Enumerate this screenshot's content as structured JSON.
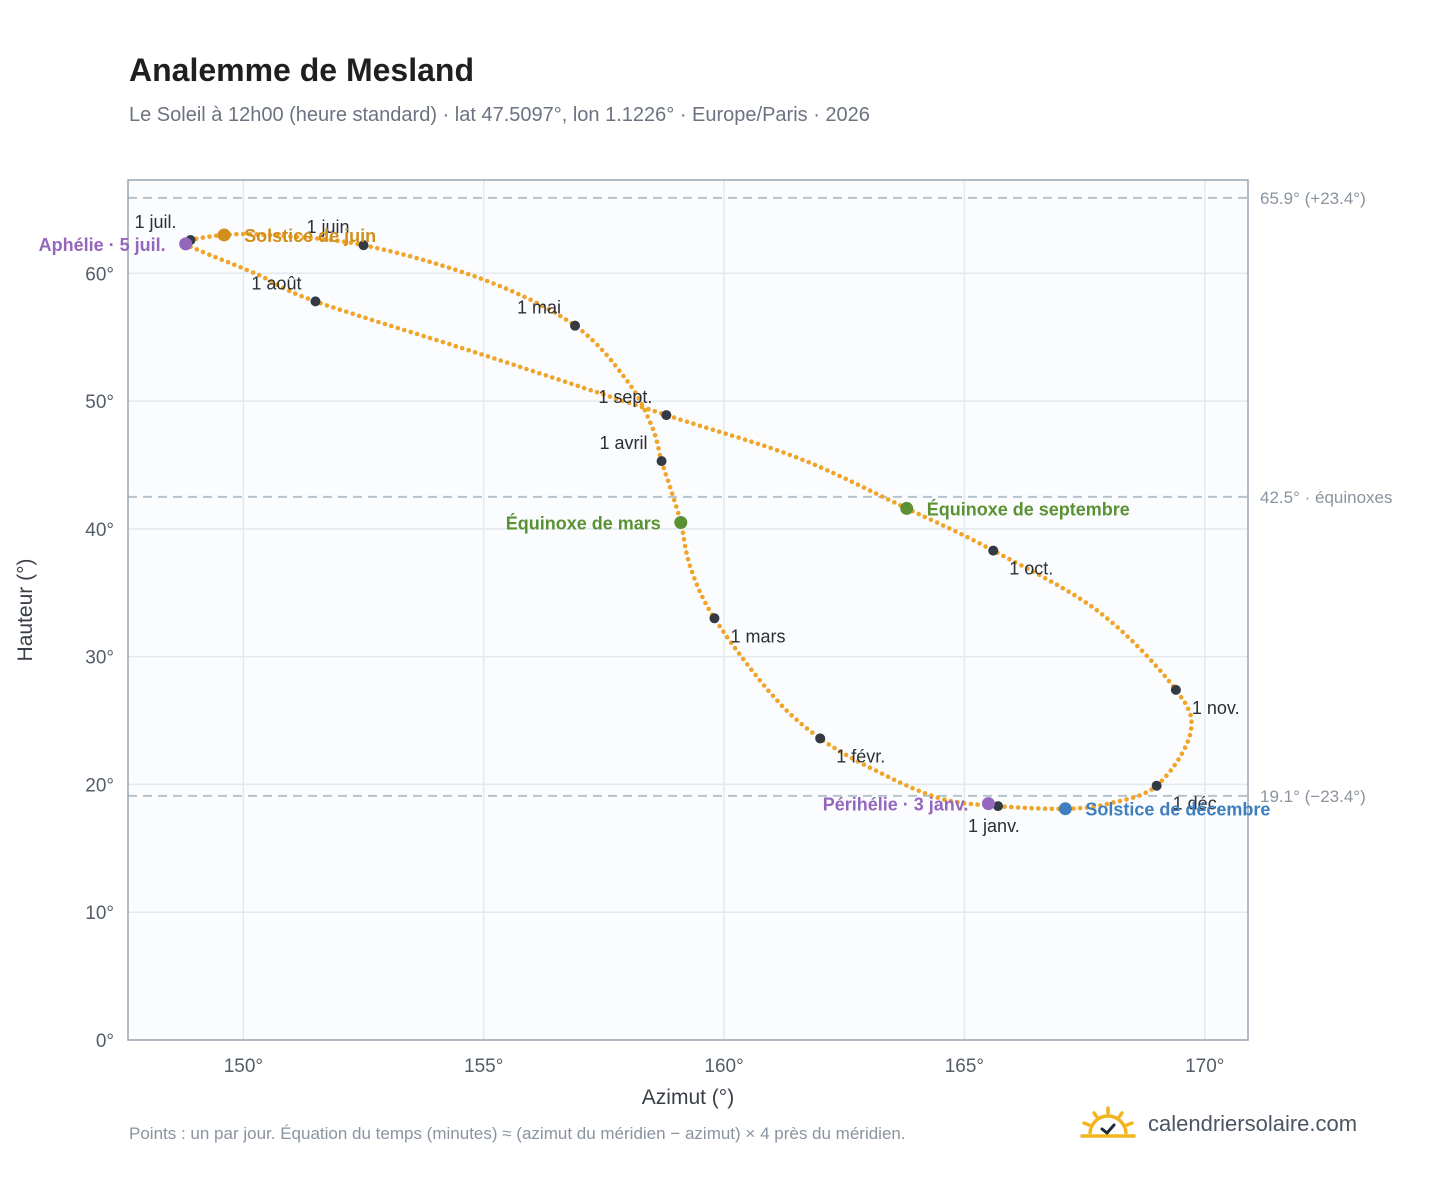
{
  "title": "Analemme de Mesland",
  "subtitle": "Le Soleil à 12h00 (heure standard) · lat 47.5097°, lon 1.1226° · Europe/Paris · 2026",
  "footnote": "Points : un par jour. Équation du temps (minutes) ≈ (azimut du méridien − azimut) × 4 près du méridien.",
  "brand": "calendriersolaire.com",
  "colors": {
    "curve": "#f0a52a",
    "month_marker": "#333a44",
    "aphelion": "#9467bd",
    "solstice_june": "#d18f1a",
    "equinox": "#5a9233",
    "solstice_december": "#3f7fc0",
    "reference_line": "#b8c2cc",
    "plot_background": "#fafcfe",
    "grid": "#e4e9ef",
    "axis_frame": "#9aa5b1"
  },
  "chart_data": {
    "type": "scatter",
    "xlabel": "Azimut (°)",
    "ylabel": "Hauteur (°)",
    "xlim": [
      147.6,
      170.9
    ],
    "ylim": [
      0,
      67.3
    ],
    "xticks": [
      150,
      155,
      160,
      165,
      170
    ],
    "yticks": [
      0,
      10,
      20,
      30,
      40,
      50,
      60
    ],
    "tick_suffix": "°",
    "grid": true,
    "reference_lines": [
      {
        "y": 65.9,
        "label": "65.9° (+23.4°)"
      },
      {
        "y": 42.5,
        "label": "42.5° · équinoxes"
      },
      {
        "y": 19.1,
        "label": "19.1° (−23.4°)"
      }
    ],
    "month_starts": [
      {
        "label": "1 janv.",
        "az": 165.7,
        "alt": 18.3,
        "anchor": "below"
      },
      {
        "label": "1 févr.",
        "az": 162.0,
        "alt": 23.6,
        "anchor": "below-right"
      },
      {
        "label": "1 mars",
        "az": 159.8,
        "alt": 33.0,
        "anchor": "below-right"
      },
      {
        "label": "1 avril",
        "az": 158.7,
        "alt": 45.3,
        "anchor": "above-left"
      },
      {
        "label": "1 mai",
        "az": 156.9,
        "alt": 55.9,
        "anchor": "above-left"
      },
      {
        "label": "1 juin",
        "az": 152.5,
        "alt": 62.2,
        "anchor": "above-left"
      },
      {
        "label": "1 juil.",
        "az": 148.9,
        "alt": 62.6,
        "anchor": "above-left"
      },
      {
        "label": "1 août",
        "az": 151.5,
        "alt": 57.8,
        "anchor": "above-left"
      },
      {
        "label": "1 sept.",
        "az": 158.8,
        "alt": 48.9,
        "anchor": "above-left"
      },
      {
        "label": "1 oct.",
        "az": 165.6,
        "alt": 38.3,
        "anchor": "below-right"
      },
      {
        "label": "1 nov.",
        "az": 169.4,
        "alt": 27.4,
        "anchor": "below-right"
      },
      {
        "label": "1 déc.",
        "az": 169.0,
        "alt": 19.9,
        "anchor": "below-right"
      }
    ],
    "events": [
      {
        "label": "Aphélie · 5 juil.",
        "az": 148.8,
        "alt": 62.3,
        "color": "#9467bd",
        "side": "left"
      },
      {
        "label": "Solstice de juin",
        "az": 149.6,
        "alt": 63.0,
        "color": "#d18f1a",
        "side": "right"
      },
      {
        "label": "Équinoxe de mars",
        "az": 159.1,
        "alt": 40.5,
        "color": "#5a9233",
        "side": "left"
      },
      {
        "label": "Équinoxe de septembre",
        "az": 163.8,
        "alt": 41.6,
        "color": "#5a9233",
        "side": "right"
      },
      {
        "label": "Périhélie · 3 janv.",
        "az": 165.5,
        "alt": 18.5,
        "color": "#9467bd",
        "side": "left"
      },
      {
        "label": "Solstice de décembre",
        "az": 167.1,
        "alt": 18.1,
        "color": "#3f7fc0",
        "side": "right"
      }
    ],
    "curve_points": [
      [
        167.1,
        18.1
      ],
      [
        165.7,
        18.3
      ],
      [
        164.5,
        18.9
      ],
      [
        163.2,
        21.0
      ],
      [
        162.0,
        23.6
      ],
      [
        161.0,
        27.0
      ],
      [
        159.8,
        33.0
      ],
      [
        159.3,
        37.0
      ],
      [
        159.1,
        40.5
      ],
      [
        158.9,
        43.0
      ],
      [
        158.7,
        45.3
      ],
      [
        158.5,
        48.0
      ],
      [
        158.0,
        51.5
      ],
      [
        156.9,
        55.9
      ],
      [
        155.0,
        59.5
      ],
      [
        152.5,
        62.2
      ],
      [
        150.5,
        63.0
      ],
      [
        149.6,
        63.0
      ],
      [
        148.9,
        62.6
      ],
      [
        148.8,
        62.3
      ],
      [
        149.2,
        61.6
      ],
      [
        150.3,
        59.9
      ],
      [
        151.5,
        57.8
      ],
      [
        155.0,
        53.6
      ],
      [
        158.8,
        48.9
      ],
      [
        161.5,
        45.6
      ],
      [
        163.8,
        41.6
      ],
      [
        165.6,
        38.3
      ],
      [
        167.8,
        33.5
      ],
      [
        169.4,
        27.4
      ],
      [
        169.7,
        24.0
      ],
      [
        169.0,
        19.9
      ],
      [
        168.0,
        18.5
      ],
      [
        167.1,
        18.1
      ]
    ]
  }
}
